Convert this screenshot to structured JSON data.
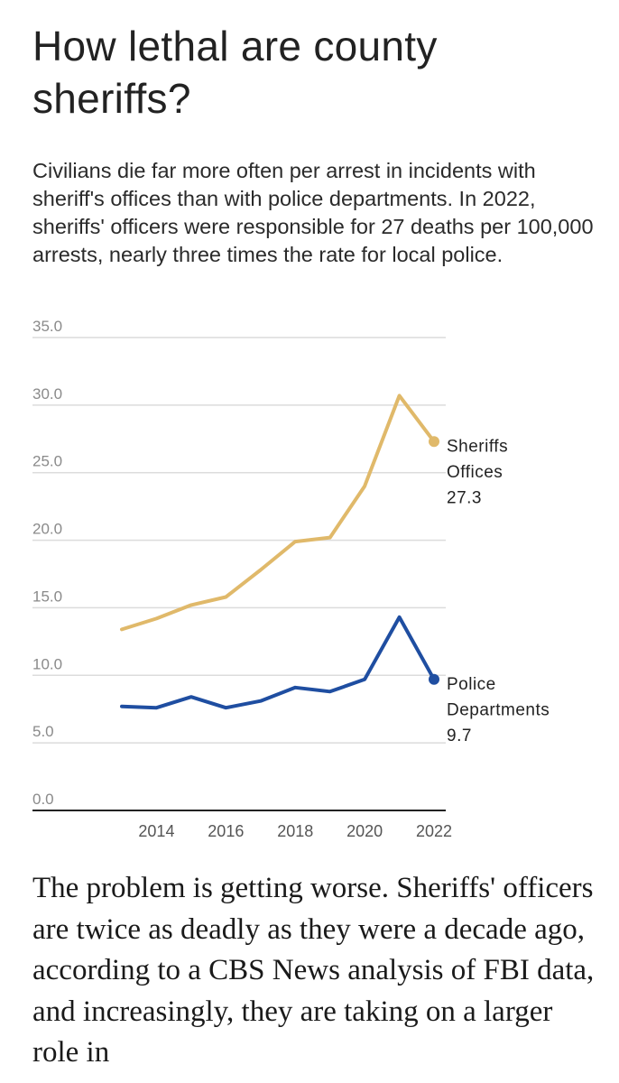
{
  "header": {
    "title": "How lethal are county sheriffs?",
    "subtitle": "Civilians die far more often per arrest in incidents with sheriff's offices than with police departments. In 2022, sheriffs' officers were responsible for 27 deaths per 100,000 arrests, nearly three times the rate for local police."
  },
  "chart_data": {
    "type": "line",
    "title": "",
    "xlabel": "",
    "ylabel": "",
    "x": [
      2013,
      2014,
      2015,
      2016,
      2017,
      2018,
      2019,
      2020,
      2021,
      2022
    ],
    "x_ticks": [
      2014,
      2016,
      2018,
      2020,
      2022
    ],
    "y_ticks": [
      "0.0",
      "5.0",
      "10.0",
      "15.0",
      "20.0",
      "25.0",
      "30.0",
      "35.0"
    ],
    "ylim": [
      0,
      35
    ],
    "grid": "horizontal",
    "legend": "direct labels at line ends",
    "series": [
      {
        "name_lines": [
          "Sheriffs",
          "Offices"
        ],
        "end_label": "27.3",
        "color": "#e0b96a",
        "values": [
          13.4,
          14.2,
          15.2,
          15.8,
          17.8,
          19.9,
          20.2,
          24.0,
          30.7,
          27.3
        ]
      },
      {
        "name_lines": [
          "Police",
          "Departments"
        ],
        "end_label": "9.7",
        "color": "#1f4ea1",
        "values": [
          7.7,
          7.6,
          8.4,
          7.6,
          8.1,
          9.1,
          8.8,
          9.7,
          14.3,
          9.7
        ]
      }
    ]
  },
  "body": {
    "paragraph": "The problem is getting worse. Sheriffs' officers are twice as deadly as they were a decade ago, according to a CBS News analysis of FBI data, and increasingly, they are taking on a larger role in"
  }
}
